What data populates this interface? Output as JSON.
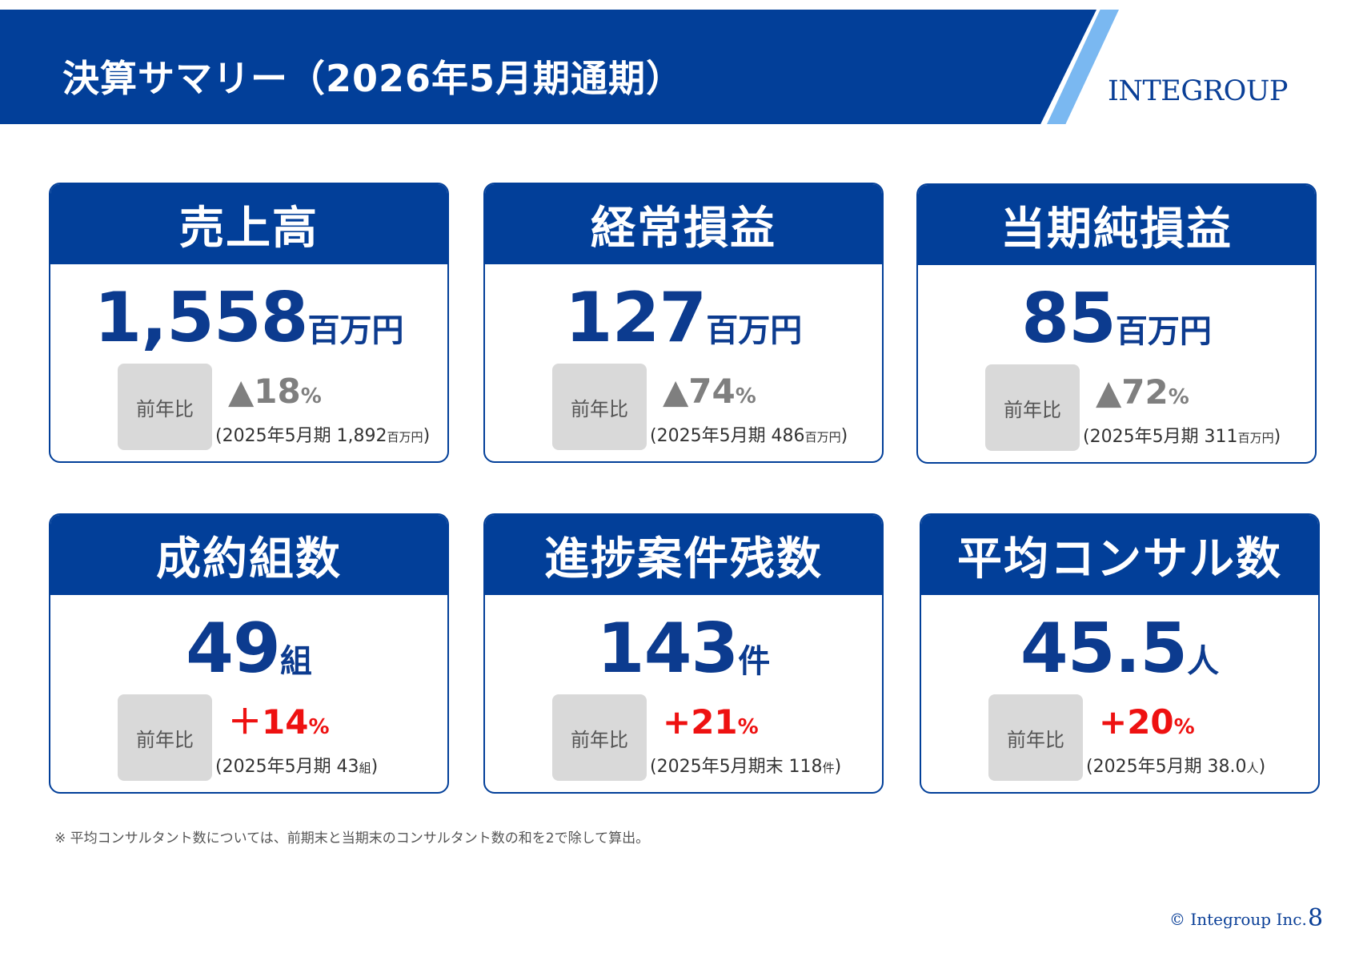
{
  "header": {
    "title": "決算サマリー（2026年5月期通期）",
    "logo_text": "INTEGROUP",
    "band_color": "#023f99",
    "stripe_color": "#7ab8f1"
  },
  "yoy_label": "前年比",
  "cards": [
    {
      "title": "売上高",
      "value": "1,558",
      "unit": "百万円",
      "change": "▲18",
      "change_unit": "%",
      "change_direction": "down",
      "prev_prefix": "(2025年5月期 1,892",
      "prev_unit": "百万円",
      "prev_suffix": ")"
    },
    {
      "title": "経常損益",
      "value": "127",
      "unit": "百万円",
      "change": "▲74",
      "change_unit": "%",
      "change_direction": "down",
      "prev_prefix": "(2025年5月期 486",
      "prev_unit": "百万円",
      "prev_suffix": ")"
    },
    {
      "title": "当期純損益",
      "value": "85",
      "unit": "百万円",
      "change": "▲72",
      "change_unit": "%",
      "change_direction": "down",
      "prev_prefix": "(2025年5月期 311",
      "prev_unit": "百万円",
      "prev_suffix": ")"
    },
    {
      "title": "成約組数",
      "value": "49",
      "unit": "組",
      "change": "＋14",
      "change_unit": "%",
      "change_direction": "up",
      "prev_prefix": "(2025年5月期 43",
      "prev_unit": "組",
      "prev_suffix": ")"
    },
    {
      "title": "進捗案件残数",
      "value": "143",
      "unit": "件",
      "change": "+21",
      "change_unit": "%",
      "change_direction": "up",
      "prev_prefix": "(2025年5月期末 118",
      "prev_unit": "件",
      "prev_suffix": ")"
    },
    {
      "title": "平均コンサル数",
      "value": "45.5",
      "unit": "人",
      "change": "+20",
      "change_unit": "%",
      "change_direction": "up",
      "prev_prefix": "(2025年5月期 38.0",
      "prev_unit": "人",
      "prev_suffix": ")"
    }
  ],
  "colors": {
    "down": "#7f7f7f",
    "up": "#ee1111",
    "value": "#0c3b8f"
  },
  "footnote": "※ 平均コンサルタント数については、前期末と当期末のコンサルタント数の和を2で除して算出。",
  "footer": {
    "copyright": "© Integroup Inc.",
    "page_number": "8"
  }
}
